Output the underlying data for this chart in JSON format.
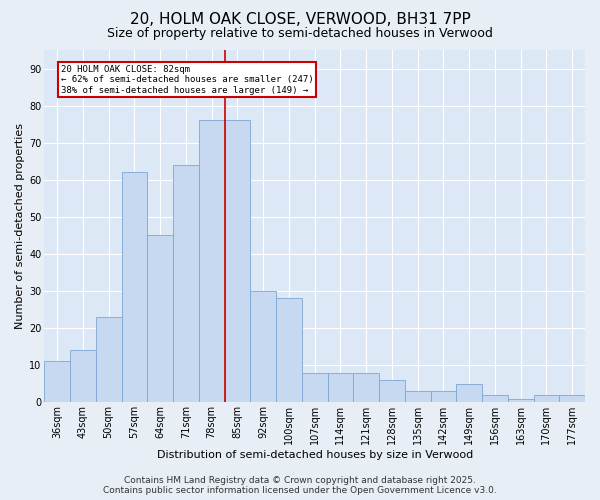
{
  "title": "20, HOLM OAK CLOSE, VERWOOD, BH31 7PP",
  "subtitle": "Size of property relative to semi-detached houses in Verwood",
  "xlabel": "Distribution of semi-detached houses by size in Verwood",
  "ylabel": "Number of semi-detached properties",
  "categories": [
    "36sqm",
    "43sqm",
    "50sqm",
    "57sqm",
    "64sqm",
    "71sqm",
    "78sqm",
    "85sqm",
    "92sqm",
    "100sqm",
    "107sqm",
    "114sqm",
    "121sqm",
    "128sqm",
    "135sqm",
    "142sqm",
    "149sqm",
    "156sqm",
    "163sqm",
    "170sqm",
    "177sqm"
  ],
  "values": [
    11,
    14,
    23,
    62,
    45,
    64,
    76,
    76,
    30,
    28,
    8,
    8,
    8,
    6,
    3,
    3,
    5,
    2,
    1,
    2,
    2
  ],
  "bar_color": "#c6d9f0",
  "bar_edge_color": "#7da6d4",
  "annotation_text": "20 HOLM OAK CLOSE: 82sqm\n← 62% of semi-detached houses are smaller (247)\n38% of semi-detached houses are larger (149) →",
  "annotation_box_color": "#ffffff",
  "annotation_box_edge_color": "#cc0000",
  "vline_color": "#cc0000",
  "footer": "Contains HM Land Registry data © Crown copyright and database right 2025.\nContains public sector information licensed under the Open Government Licence v3.0.",
  "ylim": [
    0,
    95
  ],
  "yticks": [
    0,
    10,
    20,
    30,
    40,
    50,
    60,
    70,
    80,
    90
  ],
  "fig_background_color": "#e8eef5",
  "plot_background_color": "#dce8f5",
  "grid_color": "#ffffff",
  "title_fontsize": 11,
  "subtitle_fontsize": 9,
  "axis_label_fontsize": 8,
  "tick_fontsize": 7,
  "footer_fontsize": 6.5
}
